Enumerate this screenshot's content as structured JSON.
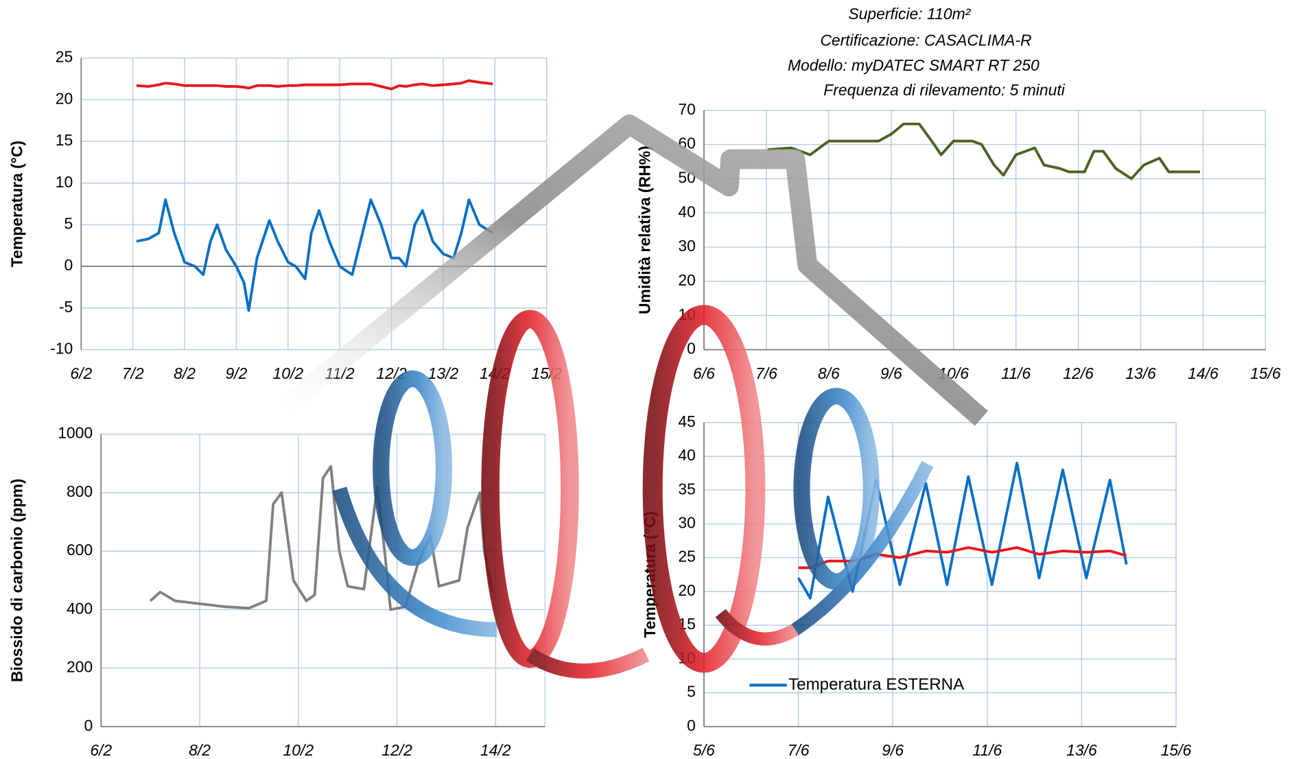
{
  "annotations": [
    "Superficie: 110m²",
    "Certificazione: CASACLIMA-R",
    "Modello: myDATEC SMART RT 250",
    "Frequenza di rilevamento: 5 minuti"
  ],
  "chart_data": [
    {
      "type": "line",
      "ylabel": "Temperatura (°C)",
      "grid": true,
      "x": [
        7.07,
        7.3,
        7.5,
        7.63,
        7.8,
        8.0,
        8.2,
        8.36,
        8.5,
        8.63,
        8.8,
        9.0,
        9.15,
        9.24,
        9.4,
        9.64,
        9.8,
        10.0,
        10.15,
        10.33,
        10.45,
        10.6,
        10.8,
        11.0,
        11.24,
        11.4,
        11.6,
        11.8,
        12.0,
        12.15,
        12.28,
        12.45,
        12.6,
        12.8,
        13.0,
        13.2,
        13.35,
        13.5,
        13.7,
        13.96
      ],
      "series": [
        {
          "color": "#e8141b",
          "values": [
            21.7,
            21.6,
            21.8,
            22.0,
            21.9,
            21.7,
            21.7,
            21.7,
            21.7,
            21.7,
            21.6,
            21.6,
            21.5,
            21.4,
            21.7,
            21.7,
            21.6,
            21.7,
            21.7,
            21.8,
            21.8,
            21.8,
            21.8,
            21.8,
            21.9,
            21.9,
            21.9,
            21.6,
            21.3,
            21.7,
            21.6,
            21.8,
            21.9,
            21.7,
            21.8,
            21.9,
            22.0,
            22.3,
            22.1,
            21.9
          ]
        },
        {
          "color": "#0b6fc2",
          "values": [
            3,
            3.3,
            4,
            8,
            4,
            0.5,
            0,
            -1,
            3,
            5,
            2,
            0,
            -2,
            -5.3,
            1,
            5.5,
            3,
            0.5,
            0,
            -1.5,
            4,
            6.7,
            3,
            0,
            -1,
            3,
            8,
            5,
            1,
            1,
            0,
            5,
            6.7,
            3,
            1.5,
            1,
            4,
            8,
            5,
            4
          ]
        }
      ],
      "xlim": [
        6,
        15
      ],
      "xticks": [
        {
          "value": 6,
          "label": "6/2"
        },
        {
          "value": 7,
          "label": "7/2"
        },
        {
          "value": 8,
          "label": "8/2"
        },
        {
          "value": 9,
          "label": "9/2"
        },
        {
          "value": 10,
          "label": "10/2"
        },
        {
          "value": 11,
          "label": "11/2"
        },
        {
          "value": 12,
          "label": "12/2"
        },
        {
          "value": 13,
          "label": "13/2"
        },
        {
          "value": 14,
          "label": "14/2"
        },
        {
          "value": 15,
          "label": "15/2"
        }
      ],
      "ylim": [
        -10,
        25
      ],
      "yticks": [
        -10,
        -5,
        0,
        5,
        10,
        15,
        20,
        25
      ]
    },
    {
      "type": "line",
      "ylabel": "Umidità relativa (RH%)",
      "grid": true,
      "x": [
        7.02,
        7.4,
        7.7,
        8.0,
        8.4,
        8.8,
        9.0,
        9.2,
        9.45,
        9.65,
        9.8,
        10.0,
        10.3,
        10.45,
        10.65,
        10.8,
        11.0,
        11.3,
        11.45,
        11.7,
        11.85,
        12.1,
        12.25,
        12.4,
        12.6,
        12.85,
        13.05,
        13.3,
        13.45,
        13.95
      ],
      "series": [
        {
          "color": "#4e5f22",
          "values": [
            58.5,
            59,
            57,
            61,
            61,
            61,
            63,
            66,
            66,
            61,
            57,
            61,
            61,
            60,
            54,
            51,
            57,
            59,
            54,
            53,
            52,
            52,
            58,
            58,
            53,
            50,
            54,
            56,
            52,
            52
          ]
        }
      ],
      "xlim": [
        6,
        15
      ],
      "xticks": [
        {
          "value": 6,
          "label": "6/6"
        },
        {
          "value": 7,
          "label": "7/6"
        },
        {
          "value": 8,
          "label": "8/6"
        },
        {
          "value": 9,
          "label": "9/6"
        },
        {
          "value": 10,
          "label": "10/6"
        },
        {
          "value": 11,
          "label": "11/6"
        },
        {
          "value": 12,
          "label": "12/6"
        },
        {
          "value": 13,
          "label": "13/6"
        },
        {
          "value": 14,
          "label": "14/6"
        },
        {
          "value": 15,
          "label": "15/6"
        }
      ],
      "ylim": [
        0,
        70
      ],
      "yticks": [
        0,
        10,
        20,
        30,
        40,
        50,
        60,
        70
      ]
    },
    {
      "type": "line",
      "ylabel": "Biossido di carbonio (ppm)",
      "grid": true,
      "x": [
        7.0,
        7.2,
        7.5,
        8.0,
        8.5,
        9.0,
        9.35,
        9.49,
        9.66,
        9.9,
        10.16,
        10.33,
        10.5,
        10.66,
        10.83,
        11.0,
        11.33,
        11.6,
        11.75,
        11.87,
        12.17,
        12.43,
        12.68,
        12.85,
        13.26,
        13.43,
        13.68,
        13.77,
        13.94
      ],
      "series": [
        {
          "color": "#808080",
          "values": [
            430,
            460,
            430,
            420,
            410,
            405,
            430,
            760,
            800,
            500,
            430,
            450,
            850,
            890,
            600,
            480,
            470,
            820,
            600,
            400,
            410,
            560,
            650,
            480,
            500,
            680,
            800,
            600,
            460
          ]
        }
      ],
      "xlim": [
        6,
        15
      ],
      "xticks": [
        {
          "value": 6,
          "label": "6/2"
        },
        {
          "value": 8,
          "label": "8/2"
        },
        {
          "value": 10,
          "label": "10/2"
        },
        {
          "value": 12,
          "label": "12/2"
        },
        {
          "value": 14,
          "label": "14/2"
        }
      ],
      "ylim": [
        0,
        1000
      ],
      "yticks": [
        0,
        200,
        400,
        600,
        800,
        1000
      ]
    },
    {
      "type": "line",
      "ylabel": "Temperatura (°C)",
      "grid": true,
      "x": [
        7.0,
        7.25,
        7.63,
        8.15,
        8.65,
        9.15,
        9.7,
        10.15,
        10.6,
        11.1,
        11.63,
        12.1,
        12.6,
        13.1,
        13.6,
        13.95
      ],
      "series": [
        {
          "name": "Temperatura ESTERNA",
          "color": "#0b6fc2",
          "values": [
            22,
            19,
            34,
            20,
            36.5,
            21,
            36,
            21,
            37,
            21,
            39,
            22,
            38,
            22,
            36.5,
            24
          ]
        },
        {
          "color": "#e8141b",
          "values": [
            23.5,
            23.5,
            24.5,
            24.5,
            25.5,
            25,
            26,
            25.8,
            26.5,
            25.8,
            26.5,
            25.5,
            26,
            25.8,
            26,
            25.3
          ]
        }
      ],
      "xlim": [
        5,
        15
      ],
      "xticks": [
        {
          "value": 5,
          "label": "5/6"
        },
        {
          "value": 7,
          "label": "7/6"
        },
        {
          "value": 9,
          "label": "9/6"
        },
        {
          "value": 11,
          "label": "11/6"
        },
        {
          "value": 13,
          "label": "13/6"
        },
        {
          "value": 15,
          "label": "15/6"
        }
      ],
      "ylim": [
        0,
        45
      ],
      "yticks": [
        0,
        5,
        10,
        15,
        20,
        25,
        30,
        35,
        40,
        45
      ]
    }
  ]
}
